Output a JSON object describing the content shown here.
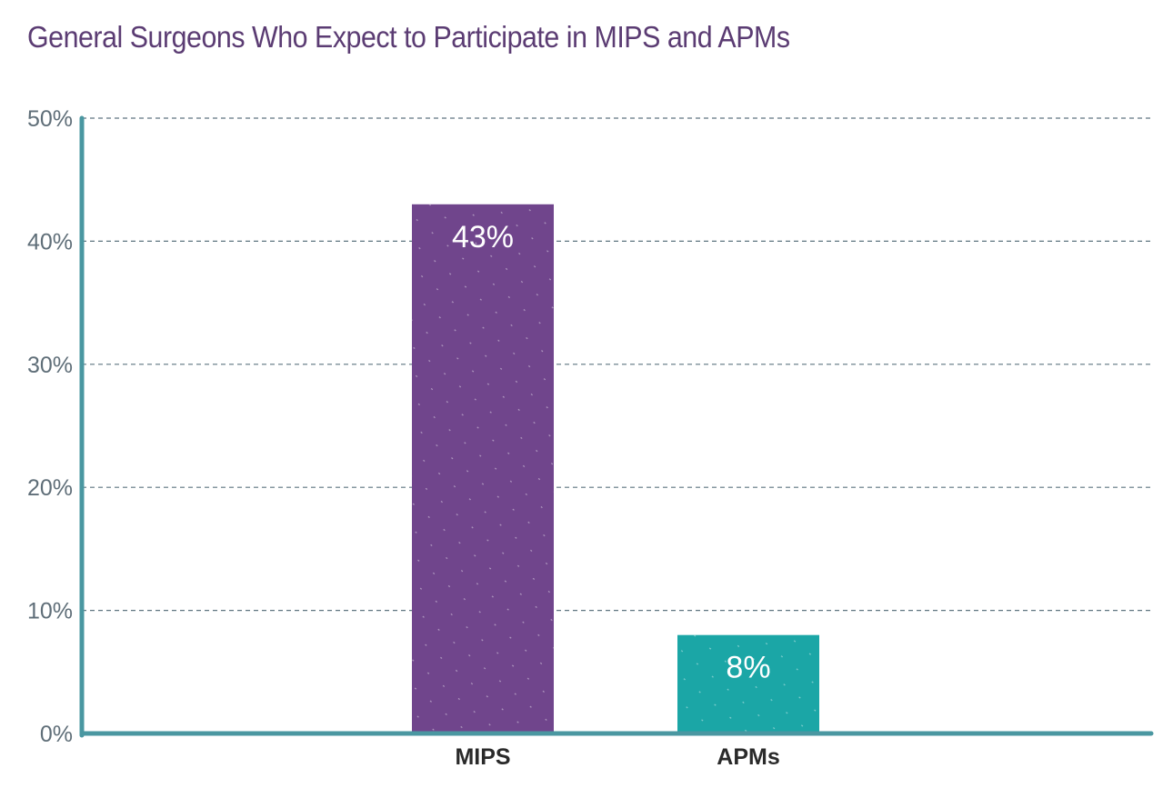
{
  "chart_data": {
    "type": "bar",
    "title": "General Surgeons Who Expect to Participate in MIPS and APMs",
    "categories": [
      "MIPS",
      "APMs"
    ],
    "values": [
      43,
      8
    ],
    "data_labels": [
      "43%",
      "8%"
    ],
    "ylim": [
      0,
      50
    ],
    "yticks": [
      0,
      10,
      20,
      30,
      40,
      50
    ],
    "ytick_labels": [
      "0%",
      "10%",
      "20%",
      "30%",
      "40%",
      "50%"
    ],
    "xlabel": "",
    "ylabel": "",
    "grid": true,
    "colors": [
      "#70458c",
      "#1ba6a6"
    ],
    "axis_color": "#4a97a1",
    "grid_color": "#5f7580"
  }
}
